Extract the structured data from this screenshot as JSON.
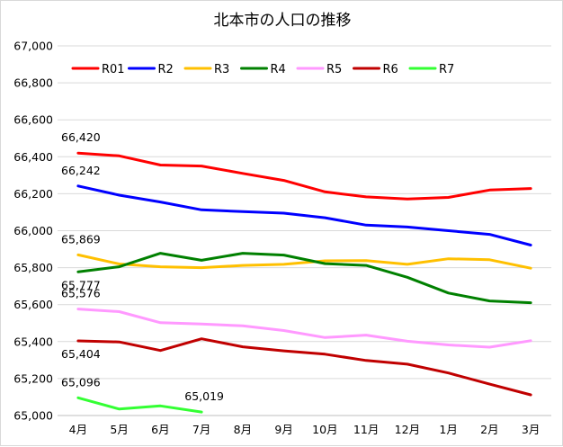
{
  "chart_data": {
    "type": "line",
    "title": "北本市の人口の推移",
    "xlabel": "",
    "ylabel": "",
    "categories": [
      "4月",
      "5月",
      "6月",
      "7月",
      "8月",
      "9月",
      "10月",
      "11月",
      "12月",
      "1月",
      "2月",
      "3月"
    ],
    "ylim": [
      65000,
      67000
    ],
    "yticks": [
      65000,
      65200,
      65400,
      65600,
      65800,
      66000,
      66200,
      66400,
      66600,
      66800,
      67000
    ],
    "ytick_labels": [
      "65,000",
      "65,200",
      "65,400",
      "65,600",
      "65,800",
      "66,000",
      "66,200",
      "66,400",
      "66,600",
      "66,800",
      "67,000"
    ],
    "grid": true,
    "legend_position": "top",
    "series": [
      {
        "name": "R01",
        "color": "#ff0000",
        "values": [
          66420,
          66405,
          66355,
          66350,
          66310,
          66272,
          66210,
          66183,
          66172,
          66180,
          66220,
          66228
        ]
      },
      {
        "name": "R2",
        "color": "#0000ff",
        "values": [
          66242,
          66192,
          66155,
          66113,
          66103,
          66095,
          66070,
          66030,
          66020,
          66000,
          65980,
          65922
        ]
      },
      {
        "name": "R3",
        "color": "#ffc000",
        "values": [
          65869,
          65820,
          65805,
          65800,
          65812,
          65818,
          65837,
          65838,
          65818,
          65848,
          65843,
          65797
        ]
      },
      {
        "name": "R4",
        "color": "#008000",
        "values": [
          65777,
          65805,
          65878,
          65840,
          65878,
          65868,
          65822,
          65812,
          65748,
          65663,
          65620,
          65610
        ]
      },
      {
        "name": "R5",
        "color": "#ff99ff",
        "values": [
          65576,
          65562,
          65502,
          65495,
          65485,
          65460,
          65422,
          65435,
          65402,
          65382,
          65370,
          65405
        ]
      },
      {
        "name": "R6",
        "color": "#c00000",
        "values": [
          65404,
          65398,
          65352,
          65415,
          65372,
          65350,
          65332,
          65298,
          65278,
          65230,
          65170,
          65112
        ]
      },
      {
        "name": "R7",
        "color": "#33ff33",
        "values": [
          65096,
          65035,
          65052,
          65019,
          null,
          null,
          null,
          null,
          null,
          null,
          null,
          null
        ]
      }
    ],
    "data_labels": [
      {
        "series": "R01",
        "index": 0,
        "text": "66,420",
        "pos": "above"
      },
      {
        "series": "R2",
        "index": 0,
        "text": "66,242",
        "pos": "above"
      },
      {
        "series": "R3",
        "index": 0,
        "text": "65,869",
        "pos": "above"
      },
      {
        "series": "R4",
        "index": 0,
        "text": "65,777",
        "pos": "below"
      },
      {
        "series": "R5",
        "index": 0,
        "text": "65,576",
        "pos": "above"
      },
      {
        "series": "R6",
        "index": 0,
        "text": "65,404",
        "pos": "below"
      },
      {
        "series": "R7",
        "index": 0,
        "text": "65,096",
        "pos": "above"
      },
      {
        "series": "R7",
        "index": 3,
        "text": "65,019",
        "pos": "above"
      }
    ]
  }
}
